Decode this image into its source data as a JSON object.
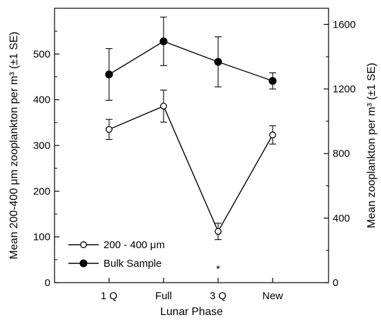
{
  "chart_data": {
    "type": "line",
    "categories": [
      "1 Q",
      "Full",
      "3 Q",
      "New"
    ],
    "xlabel": "Lunar Phase",
    "ylabel_left": "Mean 200-400 μm zooplankton per m³ (±1 SE)",
    "ylabel_right": "Mean zooplankton per m³ (±1 SE)",
    "ylim_left": [
      0,
      600
    ],
    "ylim_right": [
      0,
      1700
    ],
    "yticks_left": [
      "0",
      "100",
      "200",
      "300",
      "400",
      "500"
    ],
    "yticks_right": [
      "0",
      "400",
      "800",
      "1200",
      "1600"
    ],
    "annotation": "*",
    "series": [
      {
        "name": "200 - 400 μm",
        "axis": "left",
        "marker": "open-circle",
        "values": [
          335,
          386,
          112,
          323
        ],
        "errors": [
          22,
          35,
          18,
          20
        ]
      },
      {
        "name": "Bulk Sample",
        "axis": "right",
        "marker": "filled-circle",
        "values": [
          1290,
          1495,
          1368,
          1250
        ],
        "errors": [
          160,
          150,
          155,
          50
        ]
      }
    ],
    "legend": {
      "position": "bottom-left",
      "labels": [
        "200 - 400 μm",
        "Bulk Sample"
      ]
    }
  }
}
